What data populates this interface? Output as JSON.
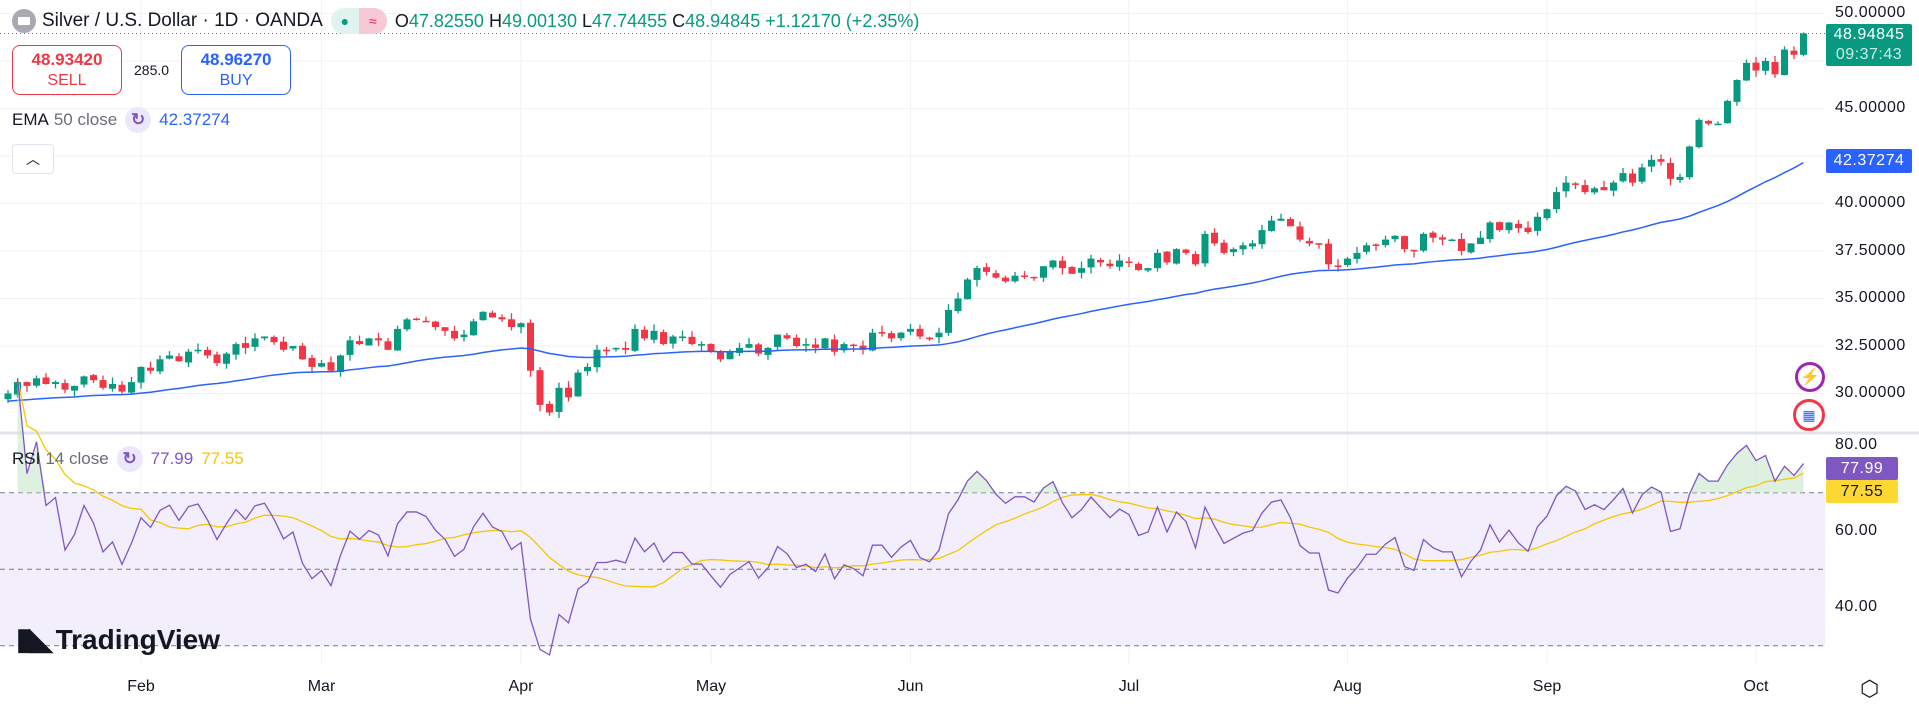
{
  "header": {
    "symbol": "Silver / U.S. Dollar · 1D · OANDA",
    "open_label": "O",
    "open": "47.82550",
    "high_label": "H",
    "high": "49.00130",
    "low_label": "L",
    "low": "47.74455",
    "close_label": "C",
    "close": "48.94845",
    "change": "+1.12170 (+2.35%)",
    "market_status_color": "#089981"
  },
  "trade": {
    "sell_price": "48.93420",
    "sell_label": "SELL",
    "spread": "285.0",
    "buy_price": "48.96270",
    "buy_label": "BUY"
  },
  "ema": {
    "name": "EMA",
    "args": "50 close",
    "value": "42.37274",
    "color": "#2962ff"
  },
  "rsi": {
    "name": "RSI",
    "args": "14 close",
    "value": "77.99",
    "ma_value": "77.55",
    "color": "#7e57c2",
    "ma_color": "#f7c600"
  },
  "price_axis": [
    "50.00000",
    "45.00000",
    "40.00000",
    "37.50000",
    "35.00000",
    "32.50000",
    "30.00000"
  ],
  "price_tag": {
    "price": "48.94845",
    "countdown": "09:37:43",
    "color": "#089981"
  },
  "ema_tag": "42.37274",
  "rsi_axis": [
    "80.00",
    "60.00",
    "40.00"
  ],
  "time_axis": [
    "Feb",
    "Mar",
    "Apr",
    "May",
    "Jun",
    "Jul",
    "Aug",
    "Sep",
    "Oct"
  ],
  "brand": "TradingView",
  "chart_data": {
    "type": "candlestick",
    "price_range": [
      27.6,
      50.7
    ],
    "rsi_levels": [
      70,
      50,
      30
    ],
    "month_start_index": [
      14,
      33,
      54,
      74,
      95,
      118,
      141,
      162,
      184
    ],
    "up_color": "#089981",
    "down_color": "#f23645",
    "last_candle": {
      "open": 47.8255,
      "high": 49.0013,
      "low": 47.74455,
      "close": 48.94845
    },
    "closes": [
      30.0,
      30.6,
      30.4,
      30.8,
      30.5,
      30.6,
      30.2,
      30.4,
      30.9,
      30.7,
      30.3,
      30.5,
      30.1,
      30.6,
      31.4,
      31.2,
      31.8,
      32.0,
      31.7,
      32.2,
      32.3,
      32.0,
      31.6,
      32.1,
      32.6,
      32.4,
      32.9,
      33.0,
      32.7,
      32.3,
      32.5,
      31.8,
      31.4,
      31.6,
      31.2,
      32.0,
      32.8,
      32.6,
      32.9,
      32.8,
      32.3,
      33.4,
      33.9,
      33.9,
      33.8,
      33.5,
      33.3,
      32.9,
      33.1,
      33.8,
      34.3,
      34.0,
      33.9,
      33.5,
      33.7,
      31.2,
      29.4,
      29.0,
      30.3,
      29.8,
      31.1,
      31.4,
      32.3,
      32.3,
      32.4,
      32.3,
      33.4,
      32.9,
      33.3,
      32.6,
      33.0,
      33.0,
      32.6,
      32.6,
      32.2,
      31.8,
      32.2,
      32.4,
      32.6,
      32.1,
      32.4,
      33.1,
      32.9,
      32.5,
      32.6,
      32.4,
      32.9,
      32.2,
      32.6,
      32.5,
      32.3,
      33.2,
      33.2,
      32.9,
      33.2,
      33.4,
      33.0,
      32.9,
      33.2,
      34.4,
      35.0,
      36.0,
      36.6,
      36.4,
      36.1,
      35.9,
      36.2,
      36.2,
      36.1,
      36.7,
      37.0,
      36.6,
      36.3,
      36.6,
      37.1,
      36.9,
      36.7,
      37.0,
      36.9,
      36.5,
      36.6,
      37.4,
      36.9,
      37.6,
      37.4,
      36.8,
      38.4,
      37.9,
      37.4,
      37.6,
      37.8,
      37.9,
      38.6,
      39.1,
      39.2,
      38.8,
      38.1,
      37.9,
      37.9,
      36.8,
      36.7,
      37.1,
      37.4,
      37.8,
      37.8,
      38.1,
      38.3,
      37.6,
      37.5,
      38.4,
      38.2,
      38.1,
      38.1,
      37.5,
      37.9,
      38.2,
      39.0,
      38.6,
      39.0,
      38.7,
      38.5,
      39.3,
      39.7,
      40.6,
      41.1,
      41.0,
      40.6,
      40.8,
      40.7,
      41.1,
      41.6,
      41.1,
      41.9,
      42.3,
      42.2,
      41.3,
      41.4,
      43.0,
      44.4,
      44.2,
      44.2,
      45.4,
      46.5,
      47.4,
      47.0,
      47.5,
      46.8,
      48.1,
      47.83,
      48.94845
    ]
  }
}
